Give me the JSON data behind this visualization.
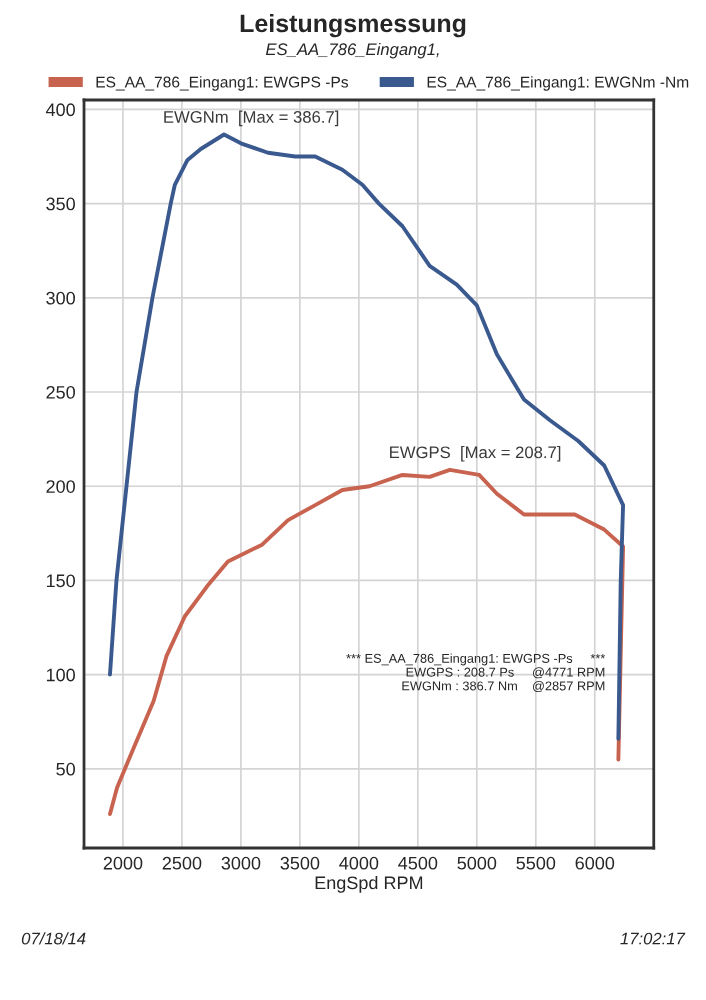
{
  "chart_data": {
    "type": "line",
    "title": "Leistungsmessung",
    "subtitle": "ES_AA_786_Eingang1,",
    "xlabel": "EngSpd RPM",
    "series": [
      {
        "name": "ES_AA_786_Eingang1: EWGPS -Ps",
        "color": "#c8634f",
        "x": [
          1890,
          1950,
          2090,
          2260,
          2370,
          2525,
          2715,
          2890,
          3180,
          3400,
          3630,
          3860,
          4090,
          4370,
          4600,
          4771,
          5020,
          5170,
          5400,
          5620,
          5830,
          6080,
          6240,
          6200
        ],
        "values": [
          26,
          40,
          61,
          86,
          110,
          131,
          147,
          160,
          169,
          182,
          190,
          198,
          200,
          206,
          205,
          208.7,
          206,
          196,
          185,
          185,
          185,
          177,
          168,
          55
        ]
      },
      {
        "name": "ES_AA_786_Eingang1: EWGNm -Nm",
        "color": "#3a5a8f",
        "x": [
          1890,
          1945,
          2030,
          2115,
          2250,
          2405,
          2440,
          2545,
          2660,
          2857,
          3000,
          3230,
          3460,
          3630,
          3860,
          4030,
          4170,
          4370,
          4600,
          4830,
          5000,
          5170,
          5400,
          5620,
          5860,
          6080,
          6240,
          6220,
          6200
        ],
        "values": [
          100,
          150,
          200,
          250,
          300,
          350,
          360,
          373,
          379,
          386.7,
          382,
          377,
          375,
          375,
          368,
          360,
          350,
          338,
          317,
          307,
          296,
          270,
          246,
          235,
          224,
          211,
          190,
          150,
          66
        ]
      }
    ],
    "xlim": [
      1670,
      6500
    ],
    "xticks": [
      2000,
      2500,
      3000,
      3500,
      4000,
      4500,
      5000,
      5500,
      6000
    ],
    "ylim": [
      8,
      405
    ],
    "yticks": [
      50,
      100,
      150,
      200,
      250,
      300,
      350,
      400
    ],
    "grid": true,
    "legend": "top",
    "line_style": "solid",
    "marker": "none",
    "annotations": [
      {
        "text": "EWGNm  [Max = 386.7]",
        "x": 2857,
        "y": 386.7
      },
      {
        "text": "EWGPS  [Max = 208.7]",
        "x": 4771,
        "y": 208.7
      },
      "*** ES_AA_786_Eingang1: EWGPS -Ps     ***\nEWGPS : 208.7 Ps     @4771 RPM\nEWGNm : 386.7 Nm    @2857 RPM",
      "07/18/14",
      "17:02:17"
    ]
  }
}
